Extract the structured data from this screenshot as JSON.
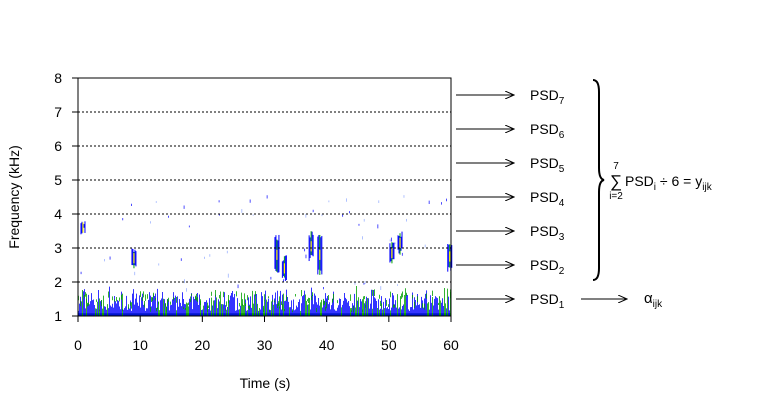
{
  "chart_data": {
    "type": "spectrogram",
    "xlabel": "Time (s)",
    "ylabel": "Frequency (kHz)",
    "xlim": [
      0,
      60
    ],
    "ylim": [
      1,
      8
    ],
    "x_ticks": [
      "0",
      "10",
      "20",
      "30",
      "40",
      "50",
      "60"
    ],
    "y_ticks": [
      "1",
      "2",
      "3",
      "4",
      "5",
      "6",
      "7",
      "8"
    ],
    "grid": "dotted horizontal lines at each kHz",
    "colors": {
      "blue": "#0000ff",
      "green": "#00a000",
      "yellow": "#ffff00",
      "noise_floor": "#006400"
    },
    "noise_band_khz": [
      1.0,
      1.7
    ],
    "events": [
      {
        "time_s": 0.8,
        "f_low_khz": 3.4,
        "f_high_khz": 3.8
      },
      {
        "time_s": 9.0,
        "f_low_khz": 2.4,
        "f_high_khz": 3.0
      },
      {
        "time_s": 32.0,
        "f_low_khz": 2.2,
        "f_high_khz": 3.4
      },
      {
        "time_s": 33.2,
        "f_low_khz": 2.0,
        "f_high_khz": 2.8
      },
      {
        "time_s": 37.5,
        "f_low_khz": 2.6,
        "f_high_khz": 3.5
      },
      {
        "time_s": 38.9,
        "f_low_khz": 2.2,
        "f_high_khz": 3.4
      },
      {
        "time_s": 50.5,
        "f_low_khz": 2.5,
        "f_high_khz": 3.2
      },
      {
        "time_s": 51.8,
        "f_low_khz": 2.8,
        "f_high_khz": 3.5
      },
      {
        "time_s": 59.8,
        "f_low_khz": 2.3,
        "f_high_khz": 3.2
      }
    ]
  },
  "bands": [
    {
      "base": "PSD",
      "sub": "7"
    },
    {
      "base": "PSD",
      "sub": "6"
    },
    {
      "base": "PSD",
      "sub": "5"
    },
    {
      "base": "PSD",
      "sub": "4"
    },
    {
      "base": "PSD",
      "sub": "3"
    },
    {
      "base": "PSD",
      "sub": "2"
    },
    {
      "base": "PSD",
      "sub": "1"
    }
  ],
  "formula": {
    "sum_upper": "7",
    "sum_lower": "i=2",
    "sigma": "∑",
    "term_base": "PSD",
    "term_sub": "i",
    "rest": " ÷ 6 = y",
    "result_sub": "ijk"
  },
  "alpha": {
    "symbol": "α",
    "sub": "ijk"
  }
}
